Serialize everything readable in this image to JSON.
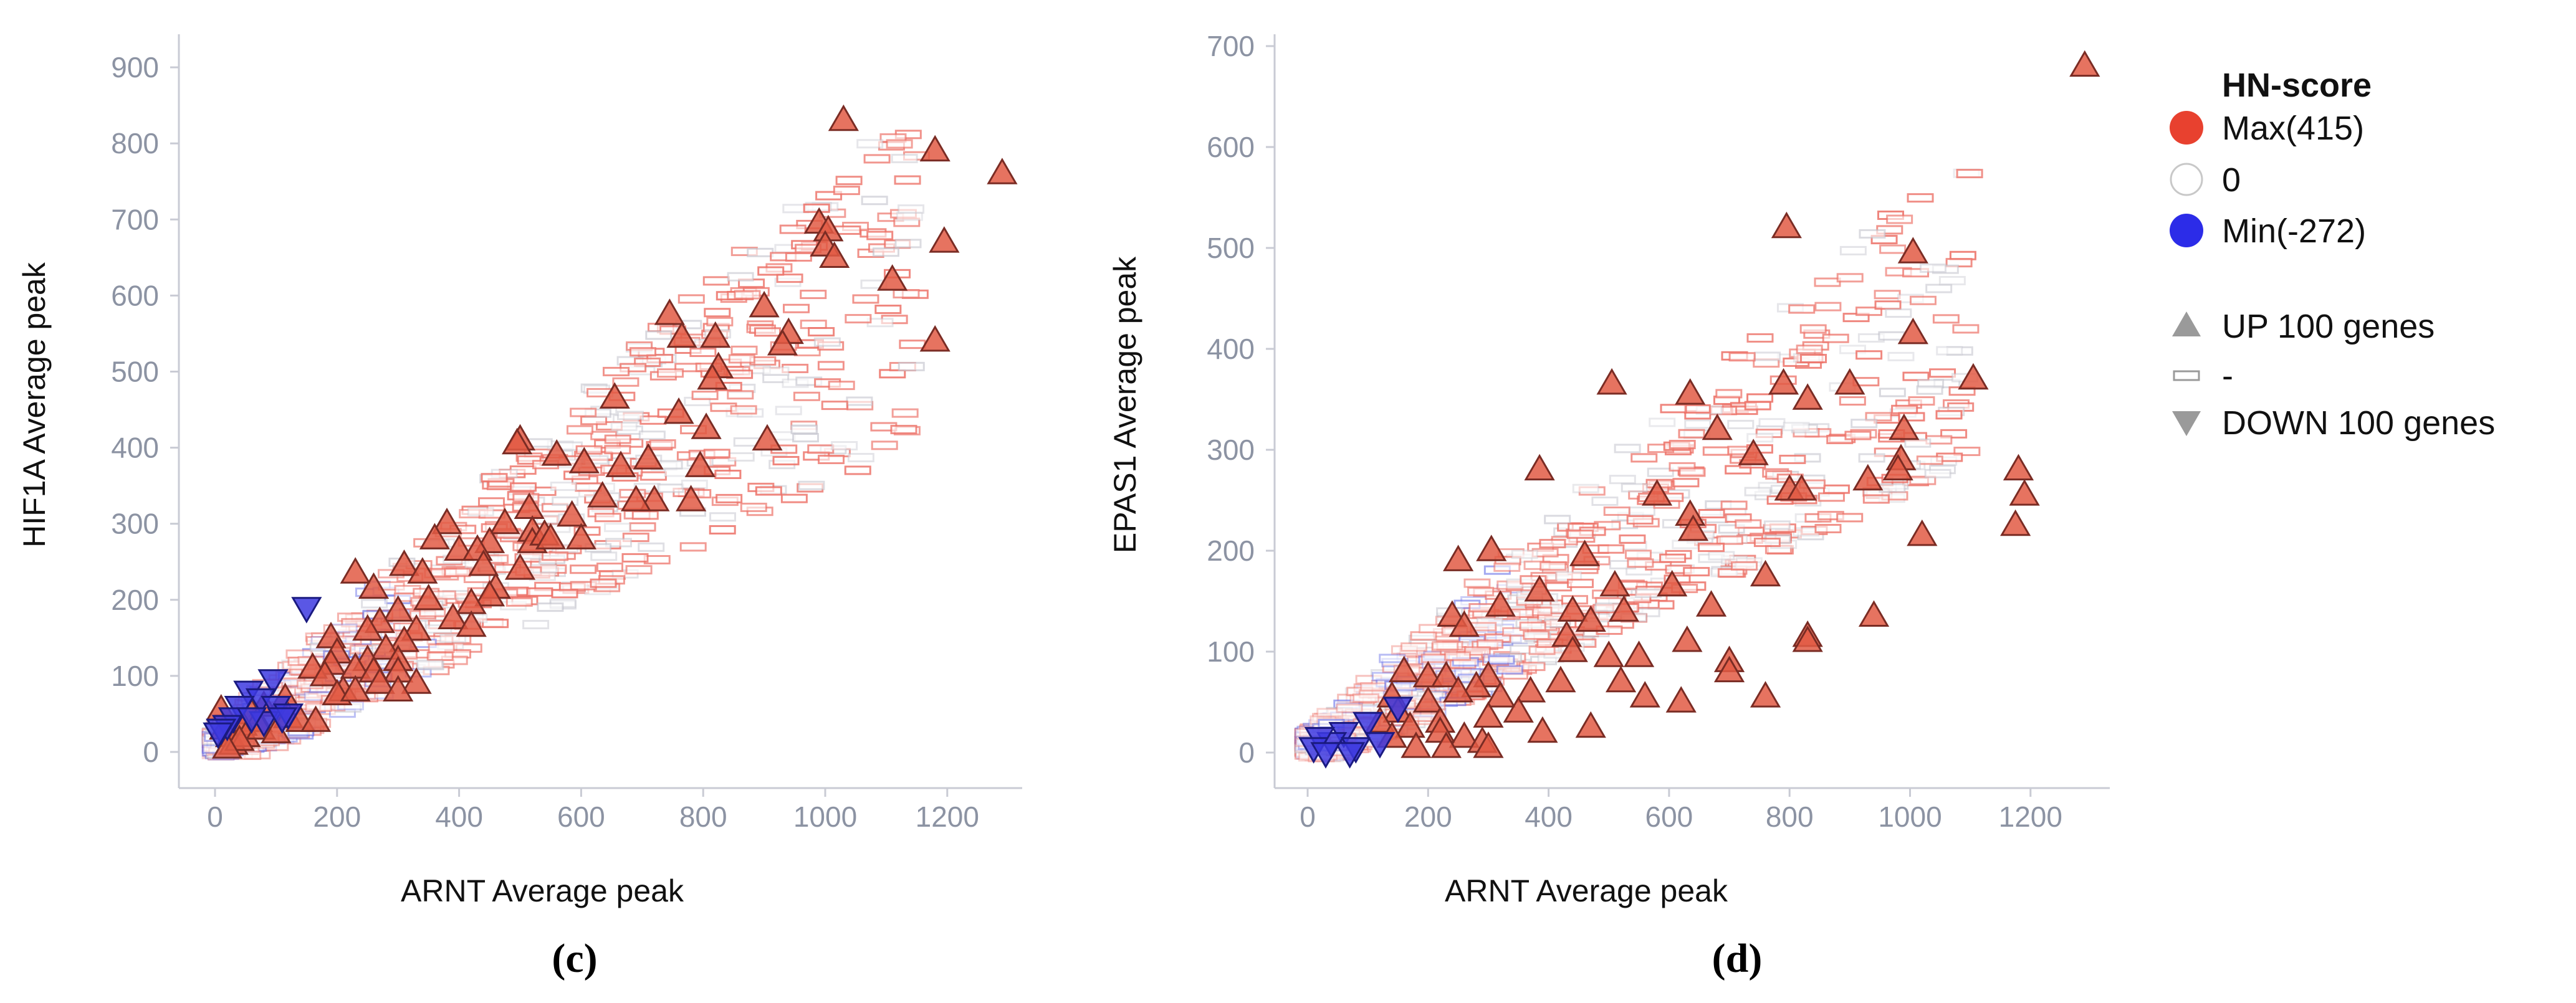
{
  "chart_data": [
    {
      "panel": "(c)",
      "type": "scatter",
      "xlabel": "ARNT Average peak",
      "ylabel": "HIF1A Average peak",
      "xlim": [
        -50,
        1350
      ],
      "ylim": [
        -50,
        930
      ],
      "xticks": [
        0,
        200,
        400,
        600,
        800,
        1000,
        1200
      ],
      "yticks": [
        0,
        100,
        200,
        300,
        400,
        500,
        600,
        700,
        800,
        900
      ],
      "series": [
        {
          "name": "UP 100 genes",
          "marker": "triangle-up",
          "points": [
            [
              1030,
              830
            ],
            [
              1180,
              790
            ],
            [
              1290,
              760
            ],
            [
              990,
              695
            ],
            [
              1005,
              685
            ],
            [
              1000,
              665
            ],
            [
              1015,
              650
            ],
            [
              1195,
              670
            ],
            [
              1110,
              620
            ],
            [
              1180,
              540
            ],
            [
              900,
              585
            ],
            [
              745,
              575
            ],
            [
              940,
              550
            ],
            [
              930,
              535
            ],
            [
              820,
              545
            ],
            [
              765,
              545
            ],
            [
              825,
              505
            ],
            [
              815,
              490
            ],
            [
              655,
              465
            ],
            [
              760,
              445
            ],
            [
              805,
              425
            ],
            [
              795,
              375
            ],
            [
              905,
              410
            ],
            [
              710,
              385
            ],
            [
              560,
              390
            ],
            [
              500,
              410
            ],
            [
              605,
              380
            ],
            [
              495,
              405
            ],
            [
              665,
              375
            ],
            [
              635,
              335
            ],
            [
              720,
              330
            ],
            [
              690,
              330
            ],
            [
              780,
              330
            ],
            [
              515,
              320
            ],
            [
              585,
              310
            ],
            [
              600,
              280
            ],
            [
              475,
              300
            ],
            [
              380,
              300
            ],
            [
              520,
              290
            ],
            [
              520,
              275
            ],
            [
              540,
              285
            ],
            [
              360,
              280
            ],
            [
              400,
              265
            ],
            [
              450,
              275
            ],
            [
              430,
              265
            ],
            [
              550,
              280
            ],
            [
              440,
              245
            ],
            [
              500,
              240
            ],
            [
              310,
              245
            ],
            [
              340,
              235
            ],
            [
              230,
              235
            ],
            [
              260,
              215
            ],
            [
              460,
              215
            ],
            [
              450,
              205
            ],
            [
              420,
              195
            ],
            [
              390,
              175
            ],
            [
              350,
              200
            ],
            [
              300,
              185
            ],
            [
              330,
              160
            ],
            [
              420,
              165
            ],
            [
              270,
              170
            ],
            [
              250,
              160
            ],
            [
              190,
              150
            ],
            [
              310,
              145
            ],
            [
              200,
              130
            ],
            [
              280,
              135
            ],
            [
              250,
              120
            ],
            [
              190,
              115
            ],
            [
              230,
              110
            ],
            [
              300,
              120
            ],
            [
              160,
              110
            ],
            [
              180,
              100
            ],
            [
              300,
              105
            ],
            [
              260,
              105
            ],
            [
              270,
              90
            ],
            [
              210,
              80
            ],
            [
              200,
              75
            ],
            [
              230,
              80
            ],
            [
              330,
              90
            ],
            [
              300,
              80
            ],
            [
              115,
              70
            ],
            [
              120,
              45
            ],
            [
              80,
              60
            ],
            [
              60,
              50
            ],
            [
              70,
              40
            ],
            [
              45,
              35
            ],
            [
              15,
              30
            ],
            [
              25,
              20
            ],
            [
              30,
              10
            ],
            [
              50,
              20
            ],
            [
              10,
              55
            ],
            [
              75,
              30
            ],
            [
              100,
              25
            ],
            [
              40,
              15
            ],
            [
              140,
              40
            ],
            [
              165,
              40
            ],
            [
              20,
              5
            ]
          ]
        },
        {
          "name": "DOWN 100 genes",
          "marker": "triangle-down",
          "points": [
            [
              150,
              190
            ],
            [
              95,
              95
            ],
            [
              55,
              80
            ],
            [
              75,
              70
            ],
            [
              40,
              60
            ],
            [
              100,
              60
            ],
            [
              120,
              50
            ],
            [
              30,
              45
            ],
            [
              20,
              35
            ],
            [
              80,
              40
            ],
            [
              10,
              30
            ],
            [
              60,
              45
            ],
            [
              110,
              45
            ],
            [
              5,
              25
            ]
          ]
        }
      ]
    },
    {
      "panel": "(d)",
      "type": "scatter",
      "xlabel": "ARNT Average peak",
      "ylabel": "EPAS1 Average peak",
      "xlim": [
        -50,
        1400
      ],
      "ylim": [
        -30,
        720
      ],
      "xticks": [
        0,
        200,
        400,
        600,
        800,
        1000,
        1200
      ],
      "yticks": [
        0,
        100,
        200,
        300,
        400,
        500,
        600,
        700
      ],
      "series": [
        {
          "name": "UP 100 genes",
          "marker": "triangle-up",
          "points": [
            [
              1290,
              680
            ],
            [
              795,
              520
            ],
            [
              1005,
              495
            ],
            [
              1005,
              415
            ],
            [
              1105,
              370
            ],
            [
              505,
              365
            ],
            [
              790,
              365
            ],
            [
              900,
              365
            ],
            [
              635,
              355
            ],
            [
              830,
              350
            ],
            [
              680,
              320
            ],
            [
              990,
              320
            ],
            [
              740,
              295
            ],
            [
              985,
              290
            ],
            [
              980,
              280
            ],
            [
              930,
              270
            ],
            [
              800,
              260
            ],
            [
              1180,
              280
            ],
            [
              1190,
              255
            ],
            [
              385,
              280
            ],
            [
              580,
              255
            ],
            [
              1175,
              225
            ],
            [
              1020,
              215
            ],
            [
              635,
              235
            ],
            [
              640,
              220
            ],
            [
              820,
              260
            ],
            [
              250,
              190
            ],
            [
              305,
              200
            ],
            [
              460,
              195
            ],
            [
              385,
              160
            ],
            [
              510,
              165
            ],
            [
              605,
              165
            ],
            [
              760,
              175
            ],
            [
              670,
              145
            ],
            [
              940,
              135
            ],
            [
              240,
              135
            ],
            [
              260,
              125
            ],
            [
              320,
              145
            ],
            [
              440,
              140
            ],
            [
              525,
              140
            ],
            [
              470,
              130
            ],
            [
              430,
              115
            ],
            [
              630,
              110
            ],
            [
              440,
              100
            ],
            [
              500,
              95
            ],
            [
              700,
              90
            ],
            [
              550,
              95
            ],
            [
              830,
              115
            ],
            [
              830,
              110
            ],
            [
              700,
              80
            ],
            [
              160,
              80
            ],
            [
              200,
              75
            ],
            [
              230,
              75
            ],
            [
              300,
              75
            ],
            [
              280,
              65
            ],
            [
              250,
              60
            ],
            [
              320,
              55
            ],
            [
              370,
              60
            ],
            [
              420,
              70
            ],
            [
              520,
              70
            ],
            [
              560,
              55
            ],
            [
              140,
              55
            ],
            [
              200,
              50
            ],
            [
              150,
              40
            ],
            [
              120,
              30
            ],
            [
              220,
              30
            ],
            [
              300,
              35
            ],
            [
              170,
              25
            ],
            [
              220,
              20
            ],
            [
              260,
              15
            ],
            [
              290,
              10
            ],
            [
              300,
              5
            ],
            [
              180,
              5
            ],
            [
              230,
              5
            ],
            [
              140,
              15
            ],
            [
              350,
              40
            ],
            [
              390,
              20
            ],
            [
              470,
              25
            ],
            [
              760,
              55
            ],
            [
              620,
              50
            ]
          ]
        },
        {
          "name": "DOWN 100 genes",
          "marker": "triangle-down",
          "points": [
            [
              150,
              45
            ],
            [
              100,
              30
            ],
            [
              60,
              20
            ],
            [
              40,
              10
            ],
            [
              20,
              15
            ],
            [
              80,
              5
            ],
            [
              10,
              5
            ],
            [
              70,
              0
            ],
            [
              30,
              0
            ],
            [
              120,
              10
            ]
          ]
        }
      ]
    }
  ],
  "legend": {
    "title": "HN-score",
    "items": [
      {
        "label": "Max(415)",
        "color": "#e8412f",
        "shape": "circle"
      },
      {
        "label": "0",
        "color": "#ffffff",
        "shape": "circle"
      },
      {
        "label": "Min(-272)",
        "color": "#2c2ce8",
        "shape": "circle"
      },
      {
        "label": "UP 100 genes",
        "color": "#9a9a9a",
        "shape": "triangle-up"
      },
      {
        "label": "-",
        "color": "#9a9a9a",
        "shape": "rectangle"
      },
      {
        "label": "DOWN 100 genes",
        "color": "#9a9a9a",
        "shape": "triangle-down"
      }
    ]
  },
  "colors": {
    "up_fill": "#e25a44",
    "down_fill": "#3d3ae0",
    "marker_stroke": "#7a2c24",
    "down_stroke": "#1a1a80",
    "axis": "#c9cbd4",
    "tick_text": "#8c93a3"
  }
}
